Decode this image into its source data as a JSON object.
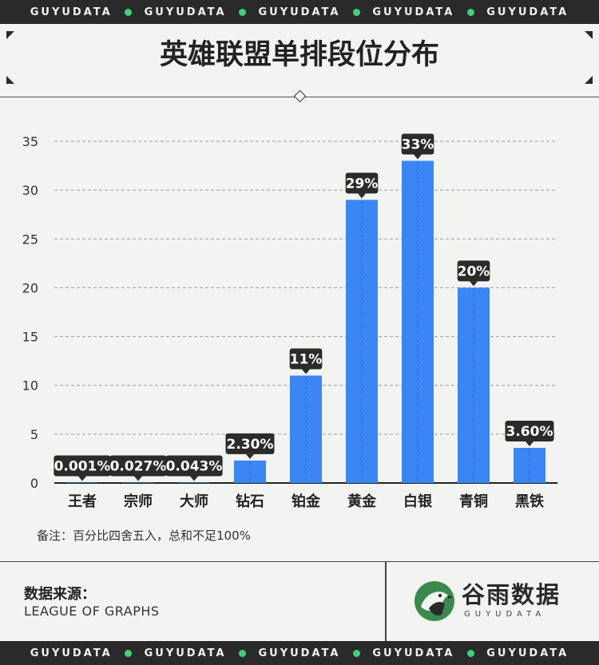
{
  "banner": {
    "top": [
      "GUYUDATA",
      "GUYUDATA",
      "GUYUDATA",
      "GUYUDATA",
      "GUYUDATA"
    ],
    "bottom": [
      "GUYUDATA",
      "GUYUDATA",
      "GUYUDATA",
      "GUYUDATA",
      "GUYUDATA"
    ],
    "dot_color": "#3fd17f"
  },
  "title": "英雄联盟单排段位分布",
  "note": "备注：百分比四舍五入，总和不足100%",
  "source": {
    "label": "数据来源：",
    "value": "LEAGUE OF GRAPHS"
  },
  "brand": {
    "cn": "谷雨数据",
    "en": "GUYUDATA",
    "logo_color": "#3a8a4e"
  },
  "colors": {
    "bar": "#3a86f5",
    "label_bg": "#2b2b2b",
    "label_text": "#ffffff",
    "background": "#f3f3f1"
  },
  "chart_data": {
    "type": "bar",
    "categories": [
      "王者",
      "宗师",
      "大师",
      "钻石",
      "铂金",
      "黄金",
      "白银",
      "青铜",
      "黑铁"
    ],
    "values": [
      0.001,
      0.027,
      0.043,
      2.3,
      11,
      29,
      33,
      20,
      3.6
    ],
    "data_labels": [
      "0.001%",
      "0.027%",
      "0.043%",
      "2.30%",
      "11%",
      "29%",
      "33%",
      "20%",
      "3.60%"
    ],
    "yticks": [
      0,
      5,
      10,
      15,
      20,
      25,
      30,
      35
    ],
    "ylim": [
      0,
      35
    ],
    "grid": true,
    "legend": "none"
  }
}
